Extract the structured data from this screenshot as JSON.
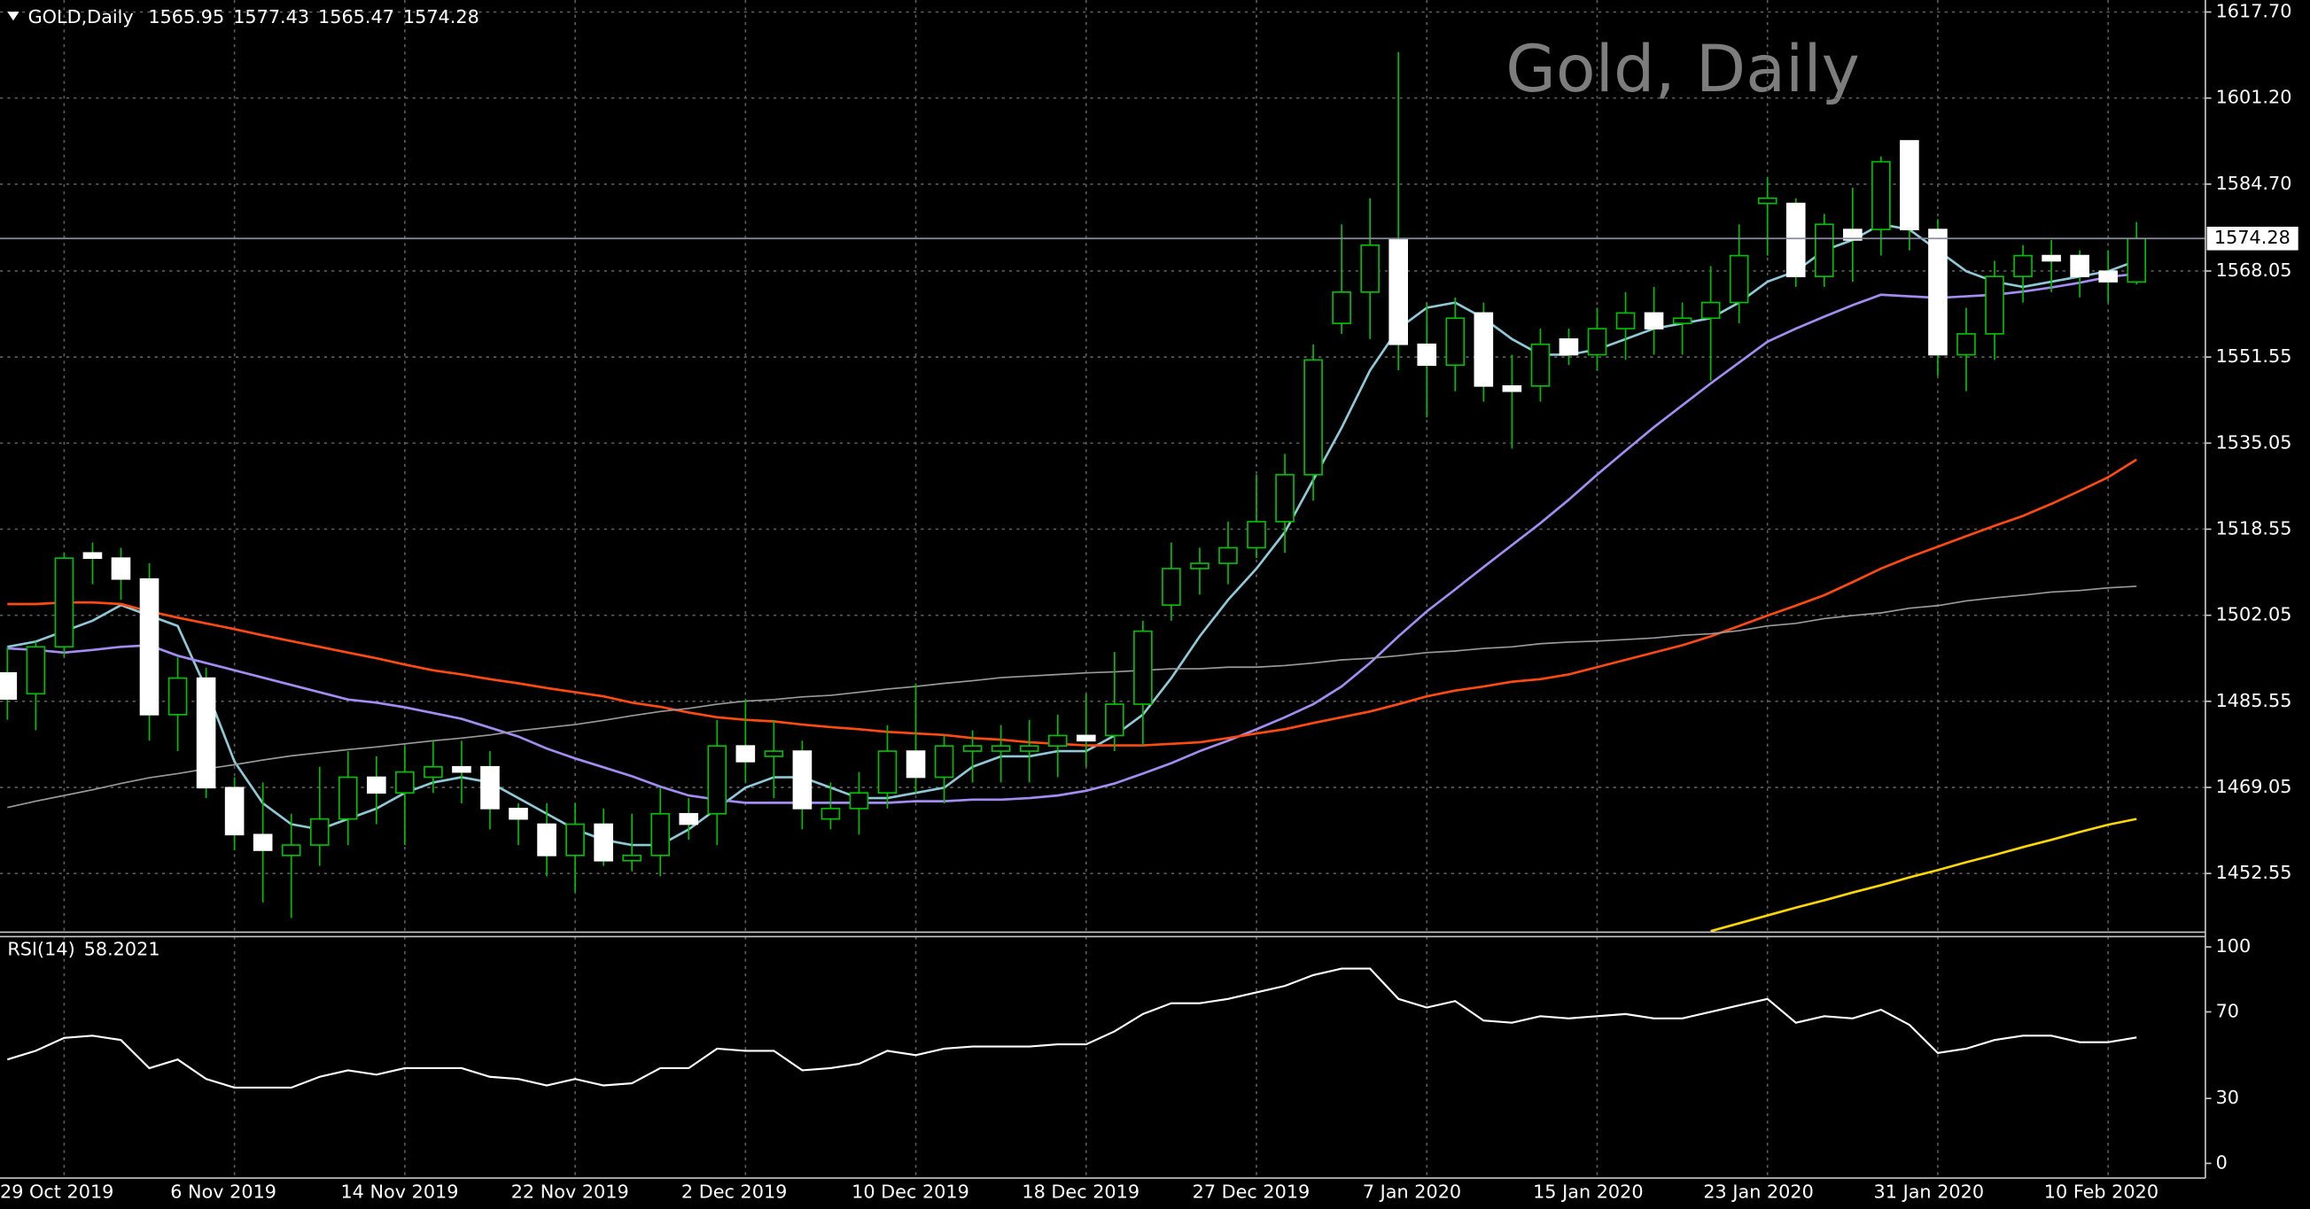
{
  "chart_data": [
    {
      "type": "candlestick",
      "title": "Gold, Daily",
      "symbol": "GOLD,Daily",
      "categories": [
        "29 Oct 2019",
        null,
        null,
        null,
        null,
        null,
        "6 Nov 2019",
        null,
        null,
        null,
        null,
        null,
        "14 Nov 2019",
        null,
        null,
        null,
        null,
        null,
        "22 Nov 2019",
        null,
        null,
        null,
        null,
        null,
        "2 Dec 2019",
        null,
        null,
        null,
        null,
        null,
        "10 Dec 2019",
        null,
        null,
        null,
        null,
        null,
        "18 Dec 2019",
        null,
        null,
        null,
        null,
        null,
        "27 Dec 2019",
        null,
        null,
        null,
        null,
        null,
        "7 Jan 2020",
        null,
        null,
        null,
        null,
        null,
        "15 Jan 2020",
        null,
        null,
        null,
        null,
        null,
        "23 Jan 2020",
        null,
        null,
        null,
        null,
        null,
        "31 Jan 2020",
        null,
        null,
        null,
        null,
        null,
        "10 Feb 2020",
        null,
        null,
        null
      ],
      "open": [
        1491,
        1487,
        1496,
        1514,
        1513,
        1509,
        1483,
        1490,
        1469,
        1460,
        1456,
        1458,
        1463,
        1471,
        1468,
        1471,
        1473,
        1473,
        1465,
        1462,
        1456,
        1462,
        1455,
        1456,
        1464,
        1464,
        1477,
        1475,
        1476,
        1463,
        1465,
        1468,
        1476,
        1471,
        1476,
        1476,
        1476,
        1477,
        1479,
        1479,
        1485,
        1504,
        1511,
        1512,
        1515,
        1520,
        1529,
        1558,
        1564,
        1574,
        1554,
        1550,
        1560,
        1546,
        1546,
        1555,
        1552,
        1557,
        1560,
        1558,
        1559,
        1562,
        1581,
        1581,
        1567,
        1576,
        1576,
        1593,
        1576,
        1552,
        1556,
        1567,
        1571,
        1571,
        1568,
        1565.95
      ],
      "high": [
        1496,
        1497,
        1514,
        1516,
        1515,
        1512,
        1494,
        1492,
        1471,
        1470,
        1464,
        1473,
        1476,
        1475,
        1477,
        1478,
        1478,
        1476,
        1466,
        1466,
        1466,
        1465,
        1464,
        1469,
        1467,
        1482,
        1486,
        1482,
        1478,
        1470,
        1472,
        1481,
        1489,
        1479,
        1480,
        1481,
        1482,
        1483,
        1487,
        1495,
        1501,
        1516,
        1515,
        1520,
        1529,
        1533,
        1554,
        1577,
        1582,
        1610,
        1562,
        1563,
        1562,
        1552,
        1557,
        1557,
        1561,
        1564,
        1565,
        1562,
        1569,
        1577,
        1586,
        1582,
        1579,
        1584,
        1590,
        1593,
        1578,
        1561,
        1570,
        1573,
        1574,
        1572,
        1572,
        1577.43
      ],
      "low": [
        1482,
        1480,
        1494,
        1508,
        1505,
        1478,
        1476,
        1467,
        1457,
        1447,
        1444,
        1454,
        1458,
        1462,
        1458,
        1468,
        1466,
        1461,
        1458,
        1452,
        1449,
        1454,
        1453,
        1452,
        1459,
        1458,
        1470,
        1467,
        1461,
        1461,
        1460,
        1465,
        1468,
        1466,
        1470,
        1470,
        1470,
        1471,
        1473,
        1476,
        1477,
        1501,
        1506,
        1508,
        1513,
        1514,
        1524,
        1556,
        1555,
        1549,
        1540,
        1545,
        1543,
        1534,
        1543,
        1550,
        1549,
        1551,
        1552,
        1552,
        1547,
        1558,
        1571,
        1565,
        1565,
        1566,
        1571,
        1572,
        1548,
        1545,
        1551,
        1562,
        1564,
        1563,
        1562,
        1565.47
      ],
      "close": [
        1486,
        1496,
        1513,
        1513,
        1509,
        1483,
        1490,
        1469,
        1460,
        1457,
        1458,
        1463,
        1471,
        1468,
        1472,
        1473,
        1472,
        1465,
        1463,
        1456,
        1462,
        1455,
        1456,
        1464,
        1462,
        1477,
        1474,
        1476,
        1465,
        1465,
        1468,
        1476,
        1471,
        1477,
        1477,
        1477,
        1477,
        1479,
        1478,
        1485,
        1499,
        1511,
        1512,
        1515,
        1520,
        1529,
        1551,
        1564,
        1573,
        1554,
        1550,
        1559,
        1546,
        1545,
        1554,
        1552,
        1557,
        1560,
        1557,
        1559,
        1562,
        1571,
        1582,
        1567,
        1577,
        1574,
        1589,
        1576,
        1552,
        1556,
        1567,
        1571,
        1570,
        1567,
        1566,
        1574.28
      ],
      "up_color": "#000000",
      "down_color": "#ffffff",
      "wick_color": "#00c000",
      "series": [
        {
          "color": "#8fc9d8",
          "values": [
            1496,
            1497,
            1499,
            1501,
            1504,
            1502,
            1500,
            1488,
            1474,
            1466,
            1462,
            1461,
            1463,
            1465,
            1468,
            1470,
            1471,
            1470,
            1467,
            1464,
            1461,
            1459,
            1458,
            1458,
            1461,
            1465,
            1469,
            1471,
            1471,
            1469,
            1467,
            1467,
            1468,
            1469,
            1473,
            1475,
            1475,
            1476,
            1476,
            1479,
            1483,
            1490,
            1498,
            1505,
            1511,
            1518,
            1528,
            1538,
            1549,
            1557,
            1561,
            1562,
            1559,
            1555,
            1552,
            1552,
            1553,
            1555,
            1557,
            1558,
            1559,
            1562,
            1566,
            1568,
            1572,
            1574,
            1577,
            1576,
            1572,
            1568,
            1566,
            1565,
            1566,
            1567,
            1568,
            1570
          ]
        },
        {
          "color": "#a48cf2",
          "values": [
            1495.7,
            1495.4,
            1494.9,
            1495.4,
            1496.0,
            1496.3,
            1494.3,
            1492.9,
            1491.5,
            1490.1,
            1488.7,
            1487.3,
            1485.9,
            1485.3,
            1484.4,
            1483.3,
            1482.2,
            1480.5,
            1478.8,
            1476.5,
            1474.6,
            1472.9,
            1471.2,
            1469.2,
            1467.5,
            1466.7,
            1466.1,
            1466.1,
            1466.1,
            1466.1,
            1466.1,
            1466.1,
            1466.4,
            1466.4,
            1466.7,
            1466.7,
            1467.0,
            1467.5,
            1468.4,
            1469.8,
            1471.7,
            1473.7,
            1476.0,
            1478.0,
            1480.2,
            1482.5,
            1485.0,
            1488.4,
            1492.9,
            1498.0,
            1502.8,
            1507.0,
            1511.3,
            1515.5,
            1519.7,
            1524.2,
            1529.0,
            1533.6,
            1538.1,
            1542.3,
            1546.5,
            1550.5,
            1554.5,
            1557.0,
            1559.3,
            1561.5,
            1563.5,
            1563.2,
            1562.9,
            1563.2,
            1563.5,
            1564.1,
            1564.9,
            1565.8,
            1566.9,
            1567.5
          ]
        },
        {
          "color": "#ff4a12",
          "values": [
            1504.2,
            1504.2,
            1504.5,
            1504.5,
            1504.2,
            1502.8,
            1501.6,
            1500.5,
            1499.4,
            1498.2,
            1497.1,
            1496.0,
            1494.9,
            1493.8,
            1492.6,
            1491.5,
            1490.7,
            1489.8,
            1489.0,
            1488.1,
            1487.3,
            1486.5,
            1485.3,
            1484.5,
            1483.4,
            1482.5,
            1482.0,
            1481.7,
            1481.1,
            1480.6,
            1480.2,
            1479.7,
            1479.4,
            1479.1,
            1478.5,
            1478.2,
            1477.7,
            1477.4,
            1477.1,
            1477.1,
            1477.1,
            1477.4,
            1477.7,
            1478.5,
            1479.4,
            1480.2,
            1481.4,
            1482.5,
            1483.6,
            1485.0,
            1486.5,
            1487.6,
            1488.4,
            1489.3,
            1489.8,
            1490.7,
            1492.1,
            1493.5,
            1494.9,
            1496.3,
            1498.0,
            1500.0,
            1502.0,
            1503.9,
            1505.9,
            1508.4,
            1511.0,
            1513.2,
            1515.2,
            1517.2,
            1519.2,
            1521.1,
            1523.4,
            1525.9,
            1528.5,
            1531.9
          ]
        },
        {
          "color": "#9a9a9a",
          "values": [
            1465.2,
            1466.4,
            1467.5,
            1468.6,
            1469.8,
            1470.9,
            1471.7,
            1472.6,
            1473.4,
            1474.3,
            1475.1,
            1475.7,
            1476.3,
            1476.8,
            1477.4,
            1478.0,
            1478.5,
            1479.1,
            1479.9,
            1480.5,
            1481.1,
            1481.9,
            1482.8,
            1483.6,
            1484.2,
            1485.0,
            1485.6,
            1485.9,
            1486.4,
            1486.7,
            1487.3,
            1487.9,
            1488.4,
            1489.0,
            1489.5,
            1490.1,
            1490.4,
            1490.7,
            1491.0,
            1491.2,
            1491.5,
            1491.8,
            1491.8,
            1492.1,
            1492.1,
            1492.4,
            1492.9,
            1493.5,
            1493.8,
            1494.3,
            1494.9,
            1495.2,
            1495.7,
            1496.0,
            1496.6,
            1496.9,
            1497.1,
            1497.4,
            1497.7,
            1498.2,
            1498.5,
            1499.1,
            1500.0,
            1500.5,
            1501.4,
            1502.0,
            1502.5,
            1503.4,
            1503.9,
            1504.8,
            1505.4,
            1505.9,
            1506.5,
            1506.8,
            1507.3,
            1507.6
          ]
        },
        {
          "color": "#ffd700",
          "values": [
            null,
            null,
            null,
            null,
            null,
            null,
            null,
            null,
            null,
            null,
            null,
            null,
            null,
            null,
            null,
            null,
            null,
            null,
            null,
            null,
            null,
            null,
            null,
            null,
            null,
            null,
            null,
            null,
            null,
            null,
            null,
            null,
            null,
            null,
            null,
            null,
            null,
            null,
            null,
            null,
            null,
            null,
            null,
            null,
            null,
            null,
            null,
            null,
            null,
            null,
            null,
            null,
            null,
            null,
            null,
            null,
            null,
            null,
            null,
            null,
            1441.5,
            1443.0,
            1444.5,
            1446.0,
            1447.4,
            1448.9,
            1450.3,
            1451.8,
            1453.2,
            1454.7,
            1456.1,
            1457.6,
            1459.0,
            1460.5,
            1461.9,
            1463.0
          ]
        }
      ],
      "ylim": [
        1441.3,
        1620.0
      ],
      "yticks": [
        {
          "value": 1617.7,
          "label": "1617.70"
        },
        {
          "value": 1601.2,
          "label": "1601.20"
        },
        {
          "value": 1584.7,
          "label": "1584.70"
        },
        1568.05,
        1551.55,
        1535.05,
        1518.55,
        1502.05,
        1485.55,
        1469.05,
        1452.55
      ],
      "grid": true
    },
    {
      "type": "line",
      "title": "RSI(14)",
      "color": "#ffffff",
      "values": [
        48,
        52,
        58,
        59,
        57,
        44,
        48,
        39,
        35,
        35,
        35,
        40,
        43,
        41,
        44,
        44,
        44,
        40,
        39,
        36,
        39,
        36,
        37,
        44,
        44,
        53,
        52,
        52,
        43,
        44,
        46,
        52,
        50,
        53,
        54,
        54,
        54,
        55,
        55,
        61,
        69,
        74,
        74,
        76,
        79,
        82,
        87,
        90,
        90,
        76,
        72,
        75,
        66,
        65,
        68,
        67,
        68,
        69,
        67,
        67,
        70,
        73,
        76,
        65,
        68,
        67,
        71,
        64,
        51,
        53,
        57,
        59,
        59,
        56,
        56,
        58.2021
      ],
      "ylim": [
        -6.8,
        104.8
      ],
      "yticks": [
        100,
        70,
        30,
        0
      ],
      "grid": false
    }
  ]
}
